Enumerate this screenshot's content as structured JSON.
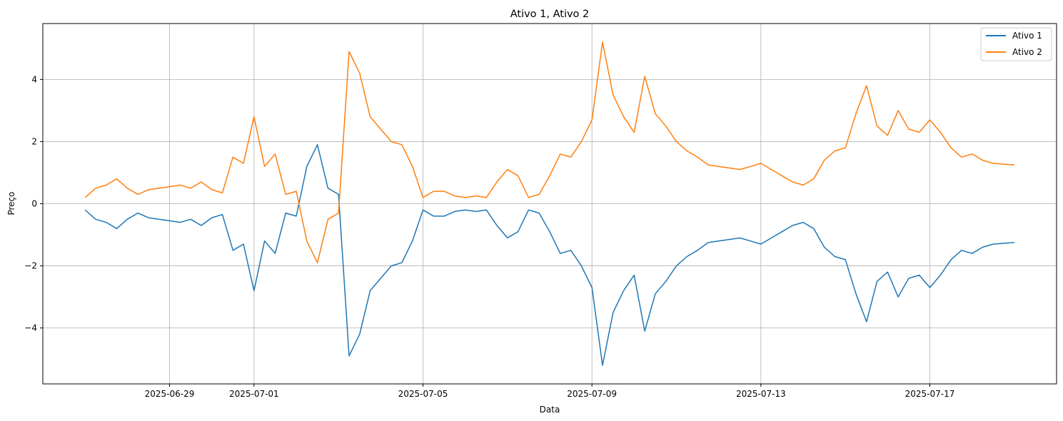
{
  "chart_data": {
    "type": "line",
    "title": "Ativo 1, Ativo 2",
    "xlabel": "Data",
    "ylabel": "Preço",
    "x_start": "2025-06-27",
    "x_end": "2025-07-19",
    "xlim": [
      "2025-06-26",
      "2025-07-20"
    ],
    "ylim": [
      -5.8,
      5.8
    ],
    "grid": true,
    "legend_position": "top-right",
    "x_ticks": [
      "2025-06-29",
      "2025-07-01",
      "2025-07-05",
      "2025-07-09",
      "2025-07-13",
      "2025-07-17"
    ],
    "y_ticks": [
      -4,
      -2,
      0,
      2,
      4
    ],
    "y_tick_labels": [
      "−4",
      "−2",
      "0",
      "2",
      "4"
    ],
    "series": [
      {
        "name": "Ativo 1",
        "color": "#1f77b4",
        "points": [
          [
            "2025-06-27 00:00",
            -0.2
          ],
          [
            "2025-06-27 06:00",
            -0.5
          ],
          [
            "2025-06-27 12:00",
            -0.6
          ],
          [
            "2025-06-27 18:00",
            -0.8
          ],
          [
            "2025-06-28 00:00",
            -0.5
          ],
          [
            "2025-06-28 06:00",
            -0.3
          ],
          [
            "2025-06-28 12:00",
            -0.45
          ],
          [
            "2025-06-28 18:00",
            -0.5
          ],
          [
            "2025-06-29 00:00",
            -0.55
          ],
          [
            "2025-06-29 06:00",
            -0.6
          ],
          [
            "2025-06-29 12:00",
            -0.5
          ],
          [
            "2025-06-29 18:00",
            -0.7
          ],
          [
            "2025-06-30 00:00",
            -0.45
          ],
          [
            "2025-06-30 06:00",
            -0.35
          ],
          [
            "2025-06-30 12:00",
            -1.5
          ],
          [
            "2025-06-30 18:00",
            -1.3
          ],
          [
            "2025-07-01 00:00",
            -2.8
          ],
          [
            "2025-07-01 06:00",
            -1.2
          ],
          [
            "2025-07-01 12:00",
            -1.6
          ],
          [
            "2025-07-01 18:00",
            -0.3
          ],
          [
            "2025-07-02 00:00",
            -0.4
          ],
          [
            "2025-07-02 06:00",
            1.2
          ],
          [
            "2025-07-02 12:00",
            1.9
          ],
          [
            "2025-07-02 18:00",
            0.5
          ],
          [
            "2025-07-03 00:00",
            0.3
          ],
          [
            "2025-07-03 06:00",
            -4.9
          ],
          [
            "2025-07-03 12:00",
            -4.2
          ],
          [
            "2025-07-03 18:00",
            -2.8
          ],
          [
            "2025-07-04 00:00",
            -2.4
          ],
          [
            "2025-07-04 06:00",
            -2.0
          ],
          [
            "2025-07-04 12:00",
            -1.9
          ],
          [
            "2025-07-04 18:00",
            -1.2
          ],
          [
            "2025-07-05 00:00",
            -0.2
          ],
          [
            "2025-07-05 06:00",
            -0.4
          ],
          [
            "2025-07-05 12:00",
            -0.4
          ],
          [
            "2025-07-05 18:00",
            -0.25
          ],
          [
            "2025-07-06 00:00",
            -0.2
          ],
          [
            "2025-07-06 06:00",
            -0.25
          ],
          [
            "2025-07-06 12:00",
            -0.2
          ],
          [
            "2025-07-06 18:00",
            -0.7
          ],
          [
            "2025-07-07 00:00",
            -1.1
          ],
          [
            "2025-07-07 06:00",
            -0.9
          ],
          [
            "2025-07-07 12:00",
            -0.2
          ],
          [
            "2025-07-07 18:00",
            -0.3
          ],
          [
            "2025-07-08 00:00",
            -0.9
          ],
          [
            "2025-07-08 06:00",
            -1.6
          ],
          [
            "2025-07-08 12:00",
            -1.5
          ],
          [
            "2025-07-08 18:00",
            -2.0
          ],
          [
            "2025-07-09 00:00",
            -2.7
          ],
          [
            "2025-07-09 06:00",
            -5.2
          ],
          [
            "2025-07-09 12:00",
            -3.5
          ],
          [
            "2025-07-09 18:00",
            -2.8
          ],
          [
            "2025-07-10 00:00",
            -2.3
          ],
          [
            "2025-07-10 06:00",
            -4.1
          ],
          [
            "2025-07-10 12:00",
            -2.9
          ],
          [
            "2025-07-10 18:00",
            -2.5
          ],
          [
            "2025-07-11 00:00",
            -2.0
          ],
          [
            "2025-07-11 06:00",
            -1.7
          ],
          [
            "2025-07-11 12:00",
            -1.5
          ],
          [
            "2025-07-11 18:00",
            -1.25
          ],
          [
            "2025-07-12 00:00",
            -1.2
          ],
          [
            "2025-07-12 06:00",
            -1.15
          ],
          [
            "2025-07-12 12:00",
            -1.1
          ],
          [
            "2025-07-12 18:00",
            -1.2
          ],
          [
            "2025-07-13 00:00",
            -1.3
          ],
          [
            "2025-07-13 06:00",
            -1.1
          ],
          [
            "2025-07-13 12:00",
            -0.9
          ],
          [
            "2025-07-13 18:00",
            -0.7
          ],
          [
            "2025-07-14 00:00",
            -0.6
          ],
          [
            "2025-07-14 06:00",
            -0.8
          ],
          [
            "2025-07-14 12:00",
            -1.4
          ],
          [
            "2025-07-14 18:00",
            -1.7
          ],
          [
            "2025-07-15 00:00",
            -1.8
          ],
          [
            "2025-07-15 06:00",
            -2.9
          ],
          [
            "2025-07-15 12:00",
            -3.8
          ],
          [
            "2025-07-15 18:00",
            -2.5
          ],
          [
            "2025-07-16 00:00",
            -2.2
          ],
          [
            "2025-07-16 06:00",
            -3.0
          ],
          [
            "2025-07-16 12:00",
            -2.4
          ],
          [
            "2025-07-16 18:00",
            -2.3
          ],
          [
            "2025-07-17 00:00",
            -2.7
          ],
          [
            "2025-07-17 06:00",
            -2.3
          ],
          [
            "2025-07-17 12:00",
            -1.8
          ],
          [
            "2025-07-17 18:00",
            -1.5
          ],
          [
            "2025-07-18 00:00",
            -1.6
          ],
          [
            "2025-07-18 06:00",
            -1.4
          ],
          [
            "2025-07-18 12:00",
            -1.3
          ],
          [
            "2025-07-19 00:00",
            -1.25
          ]
        ]
      },
      {
        "name": "Ativo 2",
        "color": "#ff7f0e",
        "points": [
          [
            "2025-06-27 00:00",
            0.2
          ],
          [
            "2025-06-27 06:00",
            0.5
          ],
          [
            "2025-06-27 12:00",
            0.6
          ],
          [
            "2025-06-27 18:00",
            0.8
          ],
          [
            "2025-06-28 00:00",
            0.5
          ],
          [
            "2025-06-28 06:00",
            0.3
          ],
          [
            "2025-06-28 12:00",
            0.45
          ],
          [
            "2025-06-28 18:00",
            0.5
          ],
          [
            "2025-06-29 00:00",
            0.55
          ],
          [
            "2025-06-29 06:00",
            0.6
          ],
          [
            "2025-06-29 12:00",
            0.5
          ],
          [
            "2025-06-29 18:00",
            0.7
          ],
          [
            "2025-06-30 00:00",
            0.45
          ],
          [
            "2025-06-30 06:00",
            0.35
          ],
          [
            "2025-06-30 12:00",
            1.5
          ],
          [
            "2025-06-30 18:00",
            1.3
          ],
          [
            "2025-07-01 00:00",
            2.8
          ],
          [
            "2025-07-01 06:00",
            1.2
          ],
          [
            "2025-07-01 12:00",
            1.6
          ],
          [
            "2025-07-01 18:00",
            0.3
          ],
          [
            "2025-07-02 00:00",
            0.4
          ],
          [
            "2025-07-02 06:00",
            -1.2
          ],
          [
            "2025-07-02 12:00",
            -1.9
          ],
          [
            "2025-07-02 18:00",
            -0.5
          ],
          [
            "2025-07-03 00:00",
            -0.3
          ],
          [
            "2025-07-03 06:00",
            4.9
          ],
          [
            "2025-07-03 12:00",
            4.2
          ],
          [
            "2025-07-03 18:00",
            2.8
          ],
          [
            "2025-07-04 00:00",
            2.4
          ],
          [
            "2025-07-04 06:00",
            2.0
          ],
          [
            "2025-07-04 12:00",
            1.9
          ],
          [
            "2025-07-04 18:00",
            1.2
          ],
          [
            "2025-07-05 00:00",
            0.2
          ],
          [
            "2025-07-05 06:00",
            0.4
          ],
          [
            "2025-07-05 12:00",
            0.4
          ],
          [
            "2025-07-05 18:00",
            0.25
          ],
          [
            "2025-07-06 00:00",
            0.2
          ],
          [
            "2025-07-06 06:00",
            0.25
          ],
          [
            "2025-07-06 12:00",
            0.2
          ],
          [
            "2025-07-06 18:00",
            0.7
          ],
          [
            "2025-07-07 00:00",
            1.1
          ],
          [
            "2025-07-07 06:00",
            0.9
          ],
          [
            "2025-07-07 12:00",
            0.2
          ],
          [
            "2025-07-07 18:00",
            0.3
          ],
          [
            "2025-07-08 00:00",
            0.9
          ],
          [
            "2025-07-08 06:00",
            1.6
          ],
          [
            "2025-07-08 12:00",
            1.5
          ],
          [
            "2025-07-08 18:00",
            2.0
          ],
          [
            "2025-07-09 00:00",
            2.7
          ],
          [
            "2025-07-09 06:00",
            5.2
          ],
          [
            "2025-07-09 12:00",
            3.5
          ],
          [
            "2025-07-09 18:00",
            2.8
          ],
          [
            "2025-07-10 00:00",
            2.3
          ],
          [
            "2025-07-10 06:00",
            4.1
          ],
          [
            "2025-07-10 12:00",
            2.9
          ],
          [
            "2025-07-10 18:00",
            2.5
          ],
          [
            "2025-07-11 00:00",
            2.0
          ],
          [
            "2025-07-11 06:00",
            1.7
          ],
          [
            "2025-07-11 12:00",
            1.5
          ],
          [
            "2025-07-11 18:00",
            1.25
          ],
          [
            "2025-07-12 00:00",
            1.2
          ],
          [
            "2025-07-12 06:00",
            1.15
          ],
          [
            "2025-07-12 12:00",
            1.1
          ],
          [
            "2025-07-12 18:00",
            1.2
          ],
          [
            "2025-07-13 00:00",
            1.3
          ],
          [
            "2025-07-13 06:00",
            1.1
          ],
          [
            "2025-07-13 12:00",
            0.9
          ],
          [
            "2025-07-13 18:00",
            0.7
          ],
          [
            "2025-07-14 00:00",
            0.6
          ],
          [
            "2025-07-14 06:00",
            0.8
          ],
          [
            "2025-07-14 12:00",
            1.4
          ],
          [
            "2025-07-14 18:00",
            1.7
          ],
          [
            "2025-07-15 00:00",
            1.8
          ],
          [
            "2025-07-15 06:00",
            2.9
          ],
          [
            "2025-07-15 12:00",
            3.8
          ],
          [
            "2025-07-15 18:00",
            2.5
          ],
          [
            "2025-07-16 00:00",
            2.2
          ],
          [
            "2025-07-16 06:00",
            3.0
          ],
          [
            "2025-07-16 12:00",
            2.4
          ],
          [
            "2025-07-16 18:00",
            2.3
          ],
          [
            "2025-07-17 00:00",
            2.7
          ],
          [
            "2025-07-17 06:00",
            2.3
          ],
          [
            "2025-07-17 12:00",
            1.8
          ],
          [
            "2025-07-17 18:00",
            1.5
          ],
          [
            "2025-07-18 00:00",
            1.6
          ],
          [
            "2025-07-18 06:00",
            1.4
          ],
          [
            "2025-07-18 12:00",
            1.3
          ],
          [
            "2025-07-19 00:00",
            1.25
          ]
        ]
      }
    ]
  }
}
